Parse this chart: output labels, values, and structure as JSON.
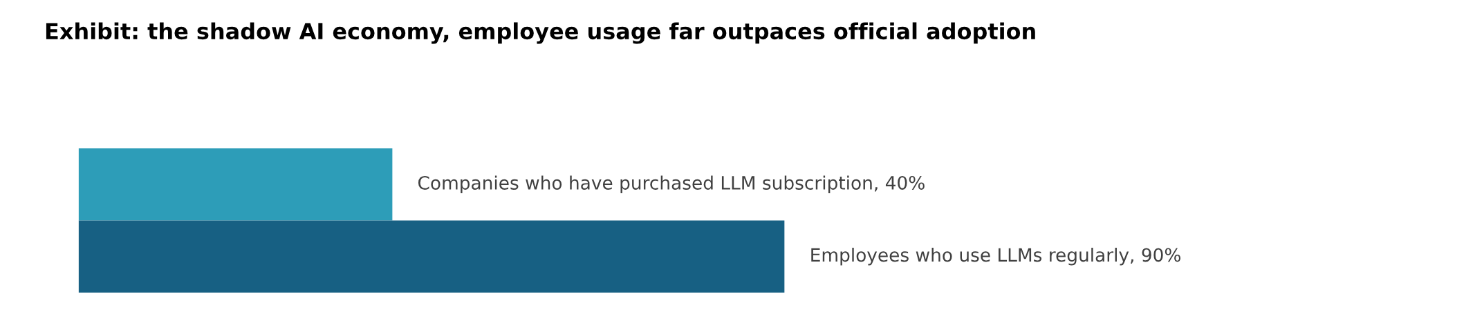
{
  "chart_data": {
    "type": "bar",
    "orientation": "horizontal",
    "title": "Exhibit: the shadow AI economy, employee usage far outpaces official adoption",
    "categories": [
      null,
      null
    ],
    "values": [
      40,
      90
    ],
    "value_labels": [
      "Companies who have purchased LLM subscription, 40%",
      "Employees who use LLMs regularly, 90%"
    ],
    "colors": [
      "#2d9db8",
      "#176083"
    ]
  }
}
